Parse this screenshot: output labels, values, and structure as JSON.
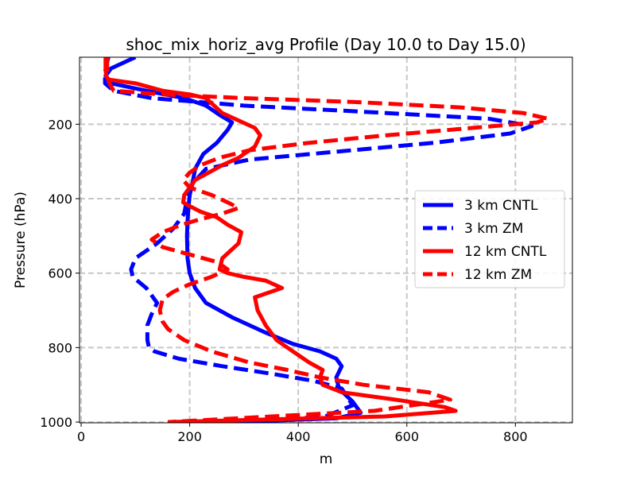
{
  "chart_data": {
    "type": "line",
    "title": "shoc_mix_horiz_avg Profile (Day 10.0 to Day 15.0)",
    "xlabel": "m",
    "ylabel": "Pressure (hPa)",
    "xlim": [
      -3,
      905
    ],
    "ylim": [
      1002,
      20
    ],
    "y_inverted": true,
    "grid": true,
    "x_ticks": [
      0,
      200,
      400,
      600,
      800
    ],
    "y_ticks": [
      200,
      400,
      600,
      800,
      1000
    ],
    "x_tick_labels": [
      "0",
      "200",
      "400",
      "600",
      "800"
    ],
    "y_tick_labels": [
      "200",
      "400",
      "600",
      "800",
      "1000"
    ],
    "legend_position": "center-right",
    "series": [
      {
        "name": "3 km CNTL",
        "color": "#0000ff",
        "dash": "solid",
        "x": [
          100,
          55,
          45,
          55,
          120,
          190,
          230,
          255,
          278,
          270,
          250,
          225,
          210,
          205,
          200,
          198,
          196,
          195,
          196,
          200,
          210,
          230,
          280,
          340,
          390,
          440,
          470,
          480,
          470,
          475,
          500,
          515,
          470,
          350,
          160
        ],
        "y": [
          20,
          50,
          70,
          90,
          110,
          130,
          150,
          175,
          195,
          215,
          250,
          280,
          320,
          360,
          390,
          420,
          460,
          500,
          560,
          600,
          640,
          680,
          720,
          760,
          790,
          810,
          830,
          850,
          880,
          910,
          945,
          975,
          990,
          996,
          1000
        ]
      },
      {
        "name": "3 km ZM",
        "color": "#0000ff",
        "dash": "dashed",
        "x": [
          50,
          44,
          44,
          60,
          130,
          300,
          500,
          750,
          830,
          790,
          650,
          460,
          310,
          230,
          205,
          195,
          190,
          170,
          140,
          100,
          92,
          95,
          120,
          140,
          130,
          122,
          122,
          125,
          135,
          180,
          260,
          350,
          430,
          480,
          500,
          450,
          350,
          160
        ],
        "y": [
          20,
          60,
          90,
          110,
          130,
          150,
          165,
          185,
          205,
          225,
          250,
          275,
          295,
          320,
          360,
          400,
          440,
          480,
          520,
          560,
          590,
          610,
          640,
          680,
          710,
          740,
          780,
          800,
          810,
          830,
          850,
          870,
          890,
          910,
          955,
          985,
          995,
          1000
        ]
      },
      {
        "name": "12 km CNTL",
        "color": "#ff0000",
        "dash": "solid",
        "x": [
          45,
          45,
          46,
          50,
          100,
          150,
          200,
          230,
          245,
          260,
          290,
          320,
          330,
          320,
          290,
          260,
          235,
          210,
          200,
          190,
          188,
          200,
          220,
          250,
          270,
          295,
          290,
          260,
          255,
          270,
          300,
          340,
          370,
          350,
          320,
          325,
          340,
          360,
          390,
          420,
          445,
          440,
          445,
          480,
          580,
          670,
          690,
          560,
          160
        ],
        "y": [
          20,
          50,
          70,
          80,
          90,
          110,
          120,
          130,
          150,
          170,
          190,
          210,
          230,
          260,
          290,
          310,
          330,
          350,
          370,
          390,
          410,
          420,
          435,
          450,
          470,
          490,
          520,
          560,
          590,
          600,
          610,
          620,
          640,
          650,
          665,
          700,
          740,
          780,
          810,
          840,
          860,
          880,
          900,
          920,
          940,
          960,
          970,
          985,
          1000
        ]
      },
      {
        "name": "12 km ZM",
        "color": "#ff0000",
        "dash": "dashed",
        "x": [
          48,
          48,
          52,
          60,
          150,
          300,
          500,
          700,
          815,
          860,
          840,
          720,
          560,
          420,
          310,
          255,
          220,
          200,
          188,
          200,
          240,
          270,
          290,
          260,
          220,
          185,
          150,
          130,
          150,
          200,
          250,
          270,
          240,
          200,
          170,
          150,
          145,
          148,
          150,
          160,
          190,
          240,
          310,
          380,
          440,
          520,
          640,
          680,
          540,
          160
        ],
        "y": [
          20,
          60,
          90,
          110,
          120,
          130,
          140,
          155,
          170,
          185,
          195,
          210,
          230,
          250,
          270,
          290,
          310,
          330,
          350,
          370,
          390,
          410,
          425,
          440,
          455,
          470,
          490,
          510,
          530,
          550,
          570,
          590,
          610,
          630,
          650,
          670,
          700,
          720,
          730,
          750,
          780,
          810,
          840,
          860,
          880,
          900,
          920,
          940,
          970,
          1000
        ]
      }
    ]
  }
}
